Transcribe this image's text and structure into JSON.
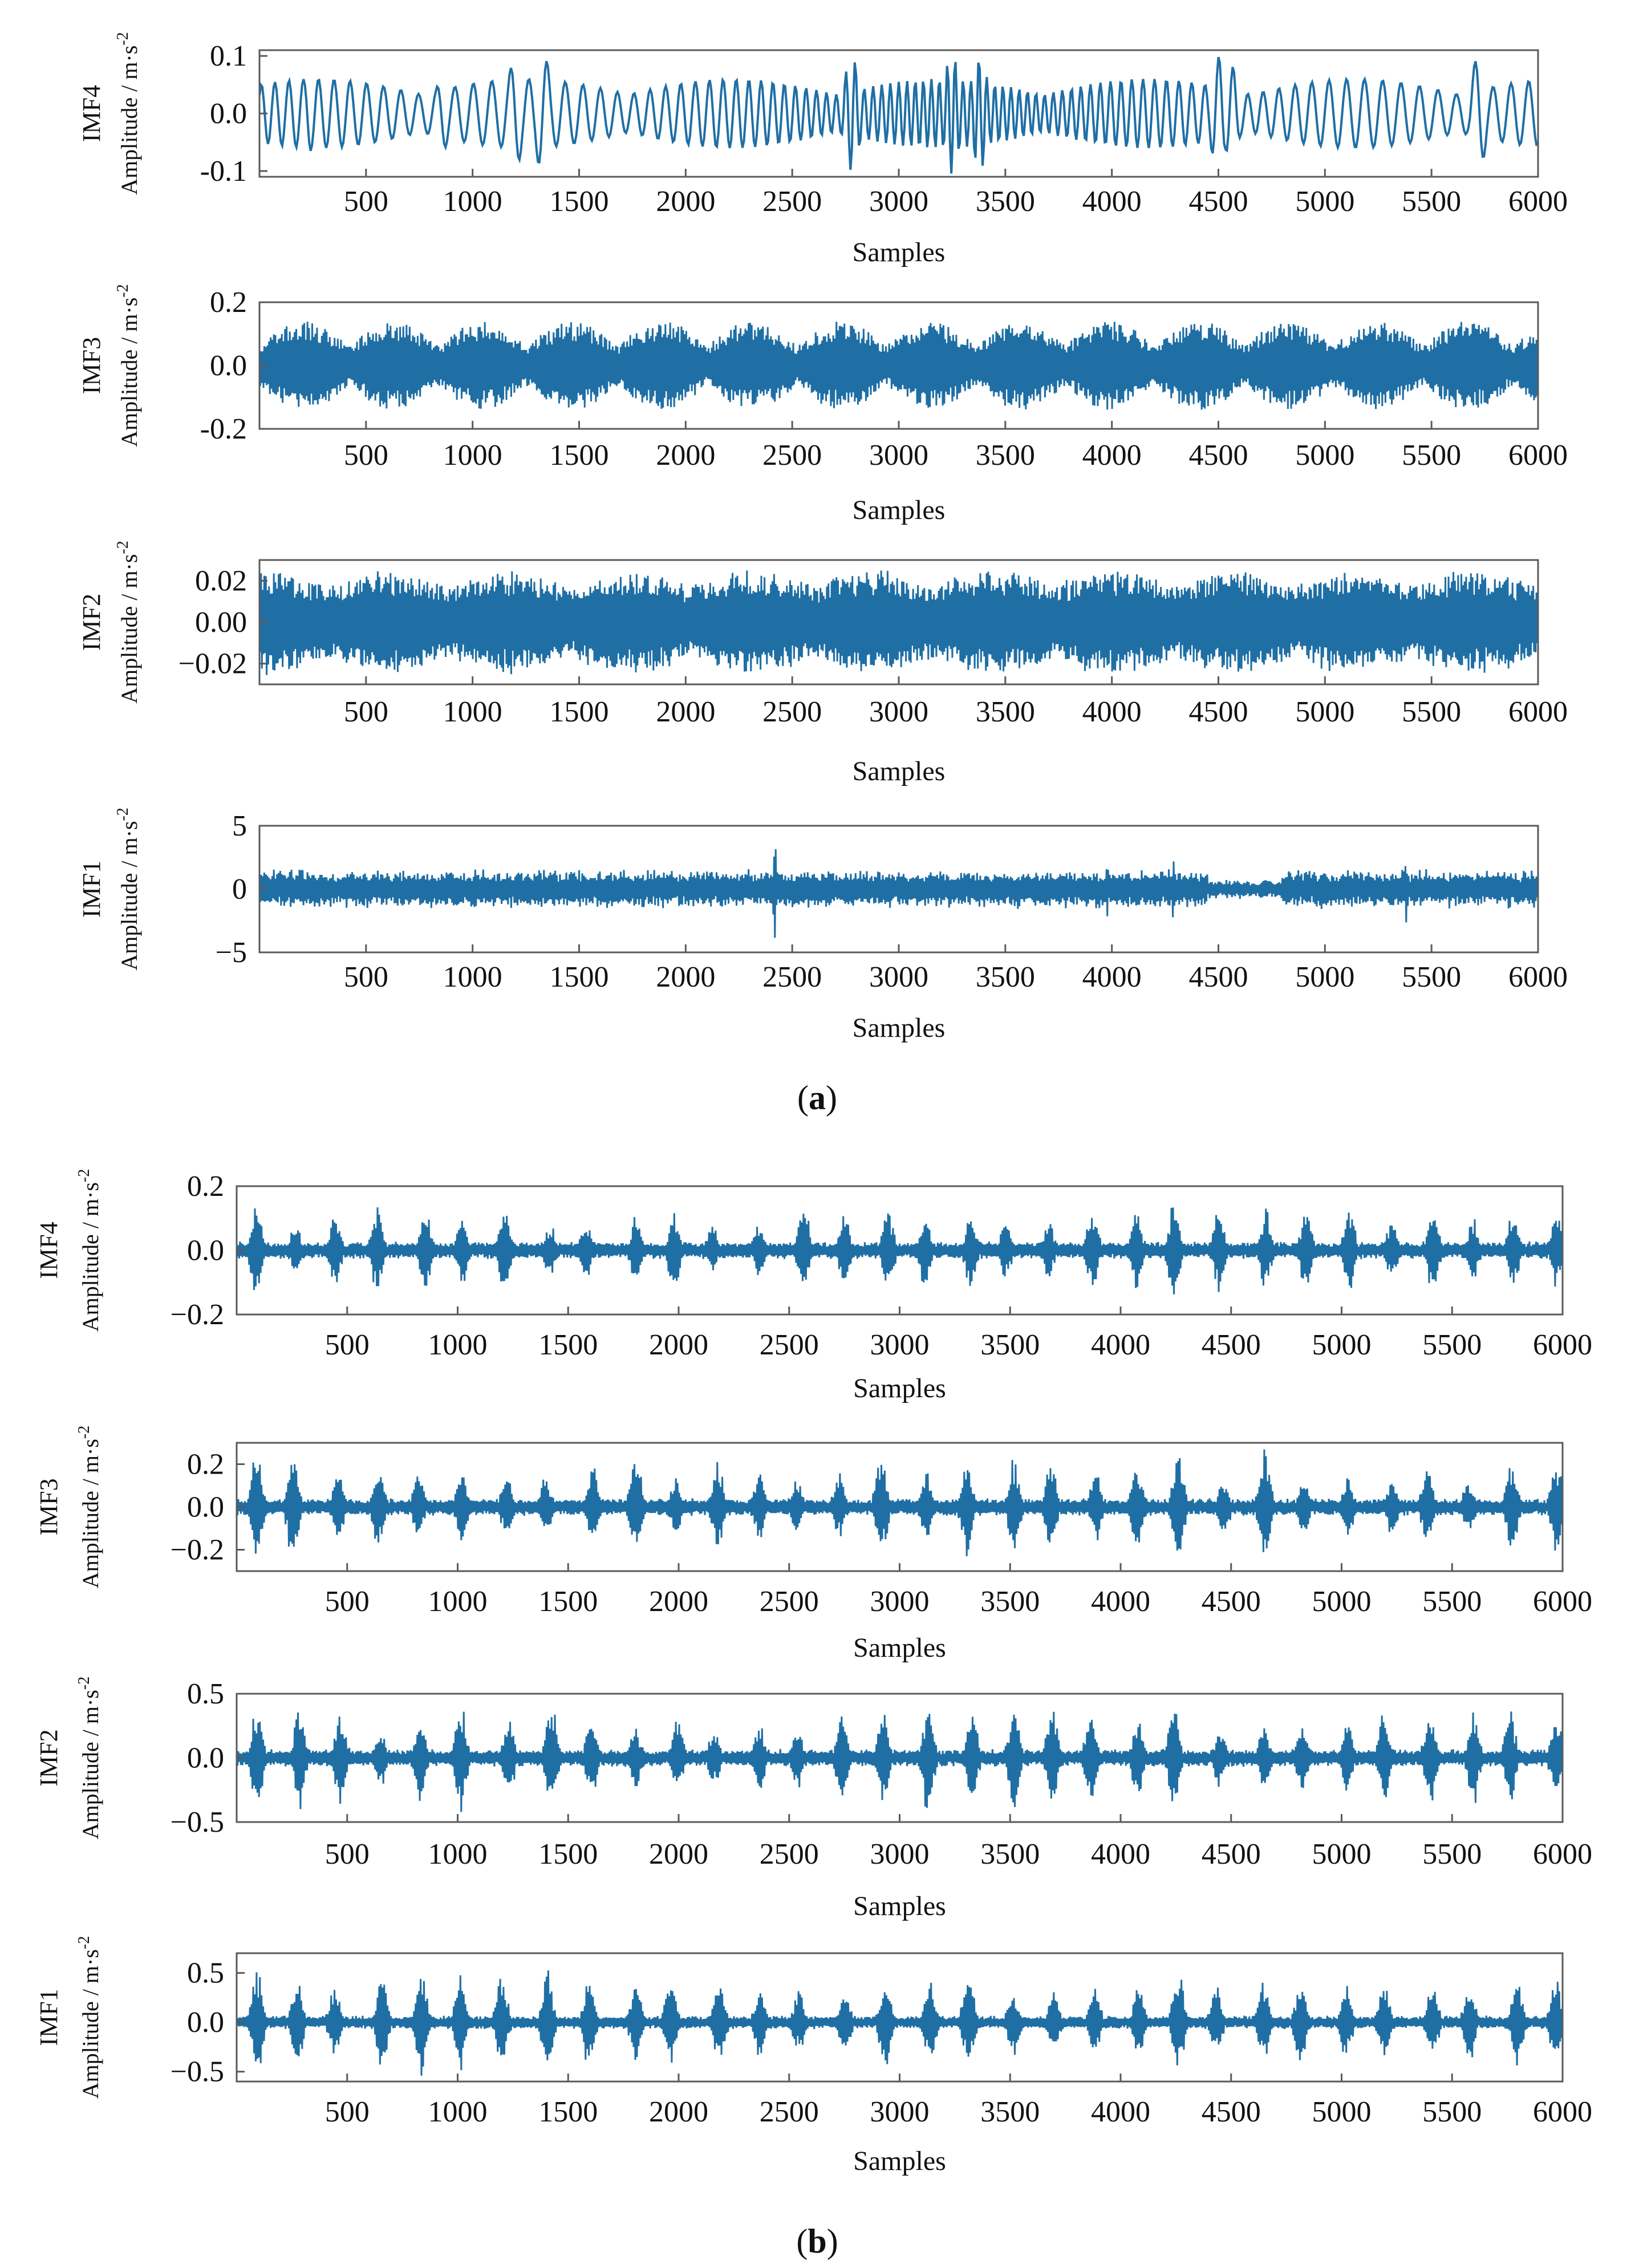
{
  "figure": {
    "caption_a": {
      "open": "(",
      "letter": "a",
      "close": ")"
    },
    "caption_b": {
      "open": "(",
      "letter": "b",
      "close": ")"
    },
    "signal_color": "#1f6fa5",
    "axis_color": "#5a5a5a"
  },
  "chart_data": [
    {
      "panel": "a",
      "type": "line",
      "title": "",
      "signal": "IMF4",
      "ylabel": "Amplitude / m·s",
      "ylabel_sup": "-2",
      "imf_label": "IMF4",
      "xlabel": "Samples",
      "xlim": [
        0,
        6000
      ],
      "ylim": [
        -0.11,
        0.11
      ],
      "xticks": [
        500,
        1000,
        1500,
        2000,
        2500,
        3000,
        3500,
        4000,
        4500,
        5000,
        5500,
        6000
      ],
      "yticks": [
        0.1,
        0.0,
        -0.1
      ],
      "ytick_labels": [
        "0.1",
        "0.0",
        "-0.1"
      ],
      "pattern": "smooth",
      "amplitude": 0.06,
      "peak_amplitude": 0.105
    },
    {
      "panel": "a",
      "type": "line",
      "title": "",
      "signal": "IMF3",
      "ylabel": "Amplitude / m·s",
      "ylabel_sup": "-2",
      "imf_label": "IMF3",
      "xlabel": "Samples",
      "xlim": [
        0,
        6000
      ],
      "ylim": [
        -0.2,
        0.2
      ],
      "xticks": [
        500,
        1000,
        1500,
        2000,
        2500,
        3000,
        3500,
        4000,
        4500,
        5000,
        5500,
        6000
      ],
      "yticks": [
        0.2,
        0.0,
        -0.2
      ],
      "ytick_labels": [
        "0.2",
        "0.0",
        "-0.2"
      ],
      "pattern": "beats",
      "amplitude": 0.14,
      "beat_period": 420
    },
    {
      "panel": "a",
      "type": "line",
      "title": "",
      "signal": "IMF2",
      "ylabel": "Amplitude / m·s",
      "ylabel_sup": "-2",
      "imf_label": "IMF2",
      "xlabel": "Samples",
      "xlim": [
        0,
        6000
      ],
      "ylim": [
        -0.03,
        0.03
      ],
      "xticks": [
        500,
        1000,
        1500,
        2000,
        2500,
        3000,
        3500,
        4000,
        4500,
        5000,
        5500,
        6000
      ],
      "yticks": [
        0.02,
        0.0,
        -0.02
      ],
      "ytick_labels": [
        "0.02",
        "0.00",
        "−0.02"
      ],
      "pattern": "dense",
      "amplitude": 0.026
    },
    {
      "panel": "a",
      "type": "line",
      "title": "",
      "signal": "IMF1",
      "ylabel": "Amplitude / m·s",
      "ylabel_sup": "-2",
      "imf_label": "IMF1",
      "xlabel": "Samples",
      "xlim": [
        0,
        6000
      ],
      "ylim": [
        -5,
        5
      ],
      "xticks": [
        500,
        1000,
        1500,
        2000,
        2500,
        3000,
        3500,
        4000,
        4500,
        5000,
        5500,
        6000
      ],
      "yticks": [
        5,
        0,
        -5
      ],
      "ytick_labels": [
        "5",
        "0",
        "−5"
      ],
      "pattern": "noise",
      "amplitude": 1.6,
      "peak_amplitude": 4.2
    },
    {
      "panel": "b",
      "type": "line",
      "title": "",
      "signal": "IMF4",
      "ylabel": "Amplitude / m·s",
      "ylabel_sup": "-2",
      "imf_label": "IMF4",
      "xlabel": "Samples",
      "xlim": [
        0,
        6000
      ],
      "ylim": [
        -0.2,
        0.2
      ],
      "xticks": [
        500,
        1000,
        1500,
        2000,
        2500,
        3000,
        3500,
        4000,
        4500,
        5000,
        5500,
        6000
      ],
      "yticks": [
        0.2,
        0.0,
        -0.2
      ],
      "ytick_labels": [
        "0.2",
        "0.0",
        "−0.2"
      ],
      "pattern": "bursts",
      "amplitude": 0.08,
      "peak_amplitude": 0.16,
      "burst_period": 190
    },
    {
      "panel": "b",
      "type": "line",
      "title": "",
      "signal": "IMF3",
      "ylabel": "Amplitude / m·s",
      "ylabel_sup": "-2",
      "imf_label": "IMF3",
      "xlabel": "Samples",
      "xlim": [
        0,
        6000
      ],
      "ylim": [
        -0.3,
        0.3
      ],
      "xticks": [
        500,
        1000,
        1500,
        2000,
        2500,
        3000,
        3500,
        4000,
        4500,
        5000,
        5500,
        6000
      ],
      "yticks": [
        0.2,
        0.0,
        -0.2
      ],
      "ytick_labels": [
        "0.2",
        "0.0",
        "−0.2"
      ],
      "pattern": "bursts",
      "amplitude": 0.12,
      "peak_amplitude": 0.3,
      "burst_period": 190
    },
    {
      "panel": "b",
      "type": "line",
      "title": "",
      "signal": "IMF2",
      "ylabel": "Amplitude / m·s",
      "ylabel_sup": "-2",
      "imf_label": "IMF2",
      "xlabel": "Samples",
      "xlim": [
        0,
        6000
      ],
      "ylim": [
        -0.5,
        0.5
      ],
      "xticks": [
        500,
        1000,
        1500,
        2000,
        2500,
        3000,
        3500,
        4000,
        4500,
        5000,
        5500,
        6000
      ],
      "yticks": [
        0.5,
        0.0,
        -0.5
      ],
      "ytick_labels": [
        "0.5",
        "0.0",
        "−0.5"
      ],
      "pattern": "bursts",
      "amplitude": 0.2,
      "peak_amplitude": 0.48,
      "burst_period": 190
    },
    {
      "panel": "b",
      "type": "line",
      "title": "",
      "signal": "IMF1",
      "ylabel": "Amplitude / m·s",
      "ylabel_sup": "-2",
      "imf_label": "IMF1",
      "xlabel": "Samples",
      "xlim": [
        0,
        6000
      ],
      "ylim": [
        -0.6,
        0.7
      ],
      "xticks": [
        500,
        1000,
        1500,
        2000,
        2500,
        3000,
        3500,
        4000,
        4500,
        5000,
        5500,
        6000
      ],
      "yticks": [
        0.5,
        0.0,
        -0.5
      ],
      "ytick_labels": [
        "0.5",
        "0.0",
        "−0.5"
      ],
      "pattern": "bursts",
      "amplitude": 0.2,
      "peak_amplitude": 0.62,
      "burst_period": 190
    }
  ]
}
